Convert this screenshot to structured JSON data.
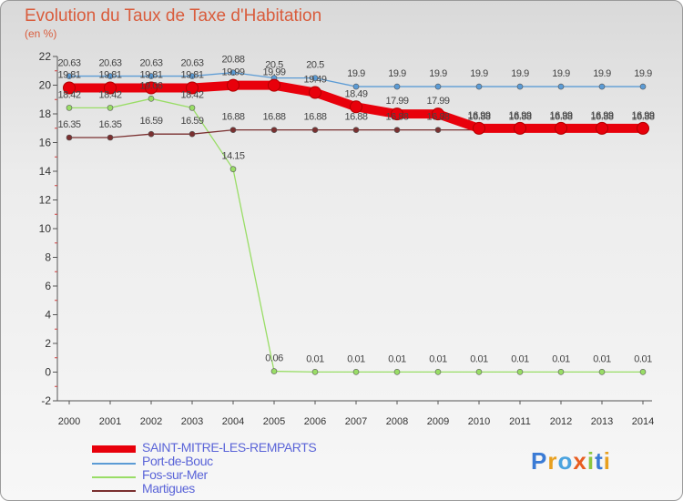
{
  "title": "Evolution du Taux de Taxe d'Habitation",
  "subtitle": "(en %)",
  "logo_text": "Proxiti",
  "chart_data": {
    "type": "line",
    "title": "Evolution du Taux de Taxe d'Habitation",
    "ylabel": "(en %)",
    "xlabel": "",
    "ylim": [
      -2,
      22
    ],
    "yticks": [
      -2,
      0,
      2,
      4,
      6,
      8,
      10,
      12,
      14,
      16,
      18,
      20,
      22
    ],
    "x": [
      "2000",
      "2001",
      "2002",
      "2003",
      "2004",
      "2005",
      "2006",
      "2007",
      "2008",
      "2009",
      "2010",
      "2011",
      "2012",
      "2013",
      "2014"
    ],
    "grid": false,
    "legend_position": "bottom-left",
    "series": [
      {
        "name": "SAINT-MITRE-LES-REMPARTS",
        "color": "#e8000b",
        "values": [
          19.81,
          19.81,
          19.81,
          19.81,
          19.99,
          19.99,
          19.49,
          18.49,
          17.99,
          17.99,
          16.99,
          16.99,
          16.99,
          16.99,
          16.99
        ],
        "labels": [
          "19.81",
          "19.81",
          "19.81",
          "19.81",
          "19.99",
          "19.99",
          "19.49",
          "18.49",
          "17.99",
          "17.99",
          "16.99",
          "16.99",
          "16.99",
          "16.99",
          "16.99"
        ]
      },
      {
        "name": "Port-de-Bouc",
        "color": "#5b9bd5",
        "values": [
          20.63,
          20.63,
          20.63,
          20.63,
          20.88,
          20.5,
          20.5,
          19.9,
          19.9,
          19.9,
          19.9,
          19.9,
          19.9,
          19.9,
          19.9
        ],
        "labels": [
          "20.63",
          "20.63",
          "20.63",
          "20.63",
          "20.88",
          "20.5",
          "20.5",
          "19.9",
          "19.9",
          "19.9",
          "19.9",
          "19.9",
          "19.9",
          "19.9",
          "19.9"
        ]
      },
      {
        "name": "Fos-sur-Mer",
        "color": "#99dd66",
        "values": [
          18.42,
          18.42,
          19.06,
          18.42,
          14.15,
          0.06,
          0.01,
          0.01,
          0.01,
          0.01,
          0.01,
          0.01,
          0.01,
          0.01,
          0.01
        ],
        "labels": [
          "18.42",
          "18.42",
          "19.06",
          "18.42",
          "14.15",
          "0.06",
          "0.01",
          "0.01",
          "0.01",
          "0.01",
          "0.01",
          "0.01",
          "0.01",
          "0.01",
          "0.01"
        ]
      },
      {
        "name": "Martigues",
        "color": "#7a3030",
        "values": [
          16.35,
          16.35,
          16.59,
          16.59,
          16.88,
          16.88,
          16.88,
          16.88,
          16.88,
          16.88,
          16.88,
          16.88,
          16.88,
          16.88,
          16.88
        ],
        "labels": [
          "16.35",
          "16.35",
          "16.59",
          "16.59",
          "16.88",
          "16.88",
          "16.88",
          "16.88",
          "16.88",
          "16.88",
          "16.88",
          "16.88",
          "16.88",
          "16.88",
          "16.88"
        ]
      }
    ]
  }
}
